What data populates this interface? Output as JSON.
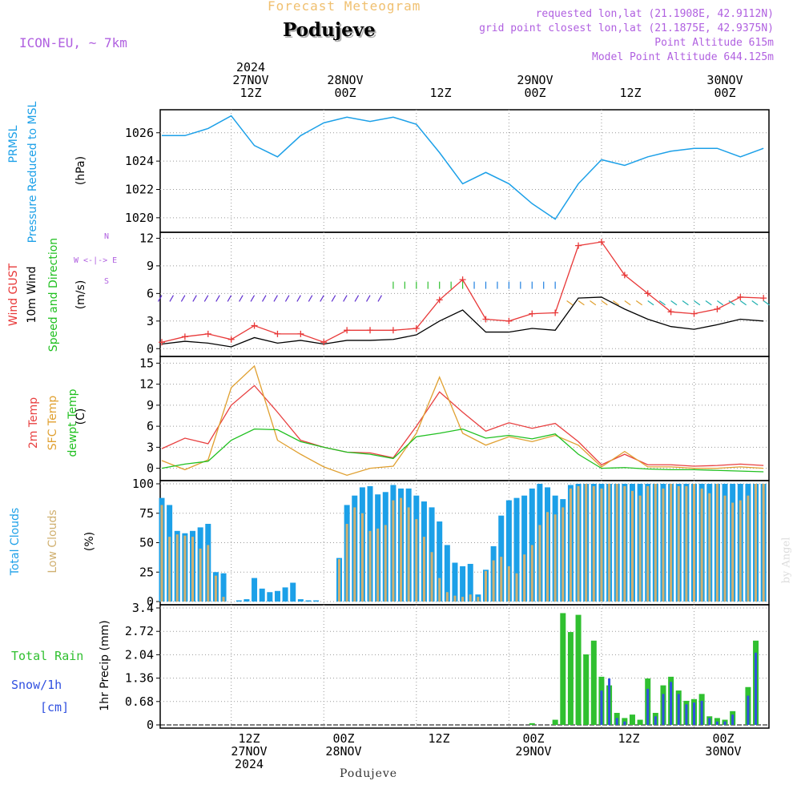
{
  "header": {
    "subtitle": "Forecast Meteogram",
    "location": "Podujeve",
    "model": "ICON-EU, ~ 7km",
    "requested": "requested lon,lat (21.1908E, 42.9112N)",
    "gridpoint": "grid point closest lon,lat (21.1875E, 42.9375N)",
    "point_altitude": "Point Altitude 615m",
    "model_altitude": "Model Point Altitude 644.125m"
  },
  "time_axis": {
    "top_ticks": [
      {
        "line1": "2024",
        "line2": "27NOV",
        "line3": "12Z"
      },
      {
        "line1": "",
        "line2": "28NOV",
        "line3": "00Z"
      },
      {
        "line1": "",
        "line2": "",
        "line3": "12Z"
      },
      {
        "line1": "",
        "line2": "29NOV",
        "line3": "00Z"
      },
      {
        "line1": "",
        "line2": "",
        "line3": "12Z"
      },
      {
        "line1": "",
        "line2": "30NOV",
        "line3": "00Z"
      }
    ],
    "bottom_ticks": [
      {
        "line1": "12Z",
        "line2": "27NOV",
        "line3": "2024"
      },
      {
        "line1": "00Z",
        "line2": "28NOV",
        "line3": ""
      },
      {
        "line1": "12Z",
        "line2": "",
        "line3": ""
      },
      {
        "line1": "00Z",
        "line2": "29NOV",
        "line3": ""
      },
      {
        "line1": "12Z",
        "line2": "",
        "line3": ""
      },
      {
        "line1": "00Z",
        "line2": "30NOV",
        "line3": ""
      }
    ]
  },
  "labels": {
    "prmsl": "PRMSL",
    "prmsl_long": "Pressure Reduced to MSL",
    "hpa": "(hPa)",
    "gust": "Wind GUST",
    "wind10": "10m Wind",
    "winddir": "Speed and Direction",
    "ms": "(m/s)",
    "compass_n": "N",
    "compass_s": "S",
    "compass_we": "W <-|-> E",
    "t2m": "2m Temp",
    "sfc": "SFC Temp",
    "dewpt": "dewpt Temp",
    "degc": "(C)",
    "total_clouds": "Total Clouds",
    "low_clouds": "Low Clouds",
    "pct": "(%)",
    "total_rain": "Total  Rain",
    "snow": "Snow/1h",
    "cm": "[cm]",
    "precip_axis": "1hr Precip (mm)",
    "watermark": "by Angel",
    "footer": "Podujeve"
  },
  "colors": {
    "pressure": "#1ca0e8",
    "gust": "#e83838",
    "wind": "#000000",
    "t2m": "#e84040",
    "sfc": "#e0a030",
    "dewpt": "#20c020",
    "total_clouds": "#1ca0e8",
    "low_clouds": "#d0b070",
    "rain": "#30c030",
    "snow": "#3050e0"
  },
  "chart_data": [
    {
      "type": "line",
      "title": "PRMSL",
      "ylabel": "(hPa)",
      "ylim": [
        1019.2,
        1027.4
      ],
      "yticks": [
        1020,
        1022,
        1024,
        1026
      ],
      "x_hours": [
        0,
        3,
        6,
        9,
        12,
        15,
        18,
        21,
        24,
        27,
        30,
        33,
        36,
        39,
        42,
        45,
        48,
        51,
        54,
        57,
        60,
        63,
        66,
        69,
        72,
        75,
        78
      ],
      "x_is_hours_from": "27NOV 03Z",
      "series": [
        {
          "values": [
            1025.8,
            1025.8,
            1026.3,
            1027.2,
            1025.1,
            1024.3,
            1025.8,
            1026.7,
            1027.1,
            1026.8,
            1027.1,
            1026.6,
            1024.6,
            1022.4,
            1023.2,
            1022.4,
            1021.0,
            1019.9,
            1022.4,
            1024.1,
            1023.7,
            1024.3,
            1024.7,
            1024.9,
            1024.9,
            1024.3,
            1024.9
          ]
        }
      ]
    },
    {
      "type": "line",
      "title": "Wind",
      "ylabel": "(m/s)",
      "ylim": [
        -0.5,
        12.3
      ],
      "yticks": [
        0,
        3,
        6,
        9,
        12
      ],
      "x_hours": [
        0,
        3,
        6,
        9,
        12,
        15,
        18,
        21,
        24,
        27,
        30,
        33,
        36,
        39,
        42,
        45,
        48,
        51,
        54,
        57,
        60,
        63,
        66,
        69,
        72,
        75,
        78
      ],
      "series": [
        {
          "values": [
            0.7,
            1.3,
            1.6,
            1.0,
            2.5,
            1.6,
            1.6,
            0.7,
            2.0,
            2.0,
            2.0,
            2.2,
            5.3,
            7.5,
            3.2,
            3.0,
            3.8,
            3.9,
            11.2,
            11.6,
            8.0,
            6.0,
            4.0,
            3.8,
            4.3,
            5.6,
            5.5
          ]
        },
        {
          "values": [
            0.5,
            0.8,
            0.6,
            0.2,
            1.2,
            0.6,
            0.9,
            0.5,
            0.9,
            0.9,
            1.0,
            1.5,
            3.0,
            4.2,
            1.8,
            1.8,
            2.2,
            2.0,
            5.5,
            5.6,
            4.3,
            3.2,
            2.4,
            2.1,
            2.6,
            3.2,
            3.0
          ]
        }
      ]
    },
    {
      "type": "line",
      "title": "Temperature",
      "ylabel": "(C)",
      "ylim": [
        -1.3,
        15.5
      ],
      "yticks": [
        0,
        3,
        6,
        9,
        12,
        15
      ],
      "x_hours": [
        0,
        3,
        6,
        9,
        12,
        15,
        18,
        21,
        24,
        27,
        30,
        33,
        36,
        39,
        42,
        45,
        48,
        51,
        54,
        57,
        60,
        63,
        66,
        69,
        72,
        75,
        78
      ],
      "series": [
        {
          "values": [
            2.8,
            4.3,
            3.5,
            9.0,
            11.8,
            8.0,
            4.0,
            3.0,
            2.3,
            2.2,
            1.5,
            6.0,
            10.9,
            8.0,
            5.3,
            6.5,
            5.7,
            6.4,
            3.8,
            0.5,
            2.0,
            0.5,
            0.5,
            0.3,
            0.4,
            0.6,
            0.4
          ]
        },
        {
          "values": [
            1.1,
            -0.2,
            1.2,
            11.5,
            14.6,
            4.0,
            2.0,
            0.2,
            -1.0,
            0.0,
            0.3,
            5.0,
            13.0,
            5.0,
            3.3,
            4.5,
            3.8,
            4.7,
            3.3,
            0.2,
            2.4,
            0.2,
            0.2,
            0.0,
            0.0,
            0.2,
            0.0
          ]
        },
        {
          "values": [
            0.0,
            0.6,
            1.0,
            4.0,
            5.6,
            5.5,
            3.8,
            3.0,
            2.3,
            2.0,
            1.4,
            4.5,
            5.0,
            5.6,
            4.3,
            4.7,
            4.2,
            4.9,
            2.0,
            0.0,
            0.1,
            -0.1,
            -0.2,
            -0.2,
            -0.3,
            -0.4,
            -0.5
          ]
        }
      ]
    },
    {
      "type": "bar",
      "title": "Clouds",
      "ylabel": "(%)",
      "ylim": [
        0,
        100
      ],
      "yticks": [
        0,
        25,
        50,
        75,
        100
      ],
      "x_hours": [
        0,
        1,
        2,
        3,
        4,
        5,
        6,
        7,
        8,
        9,
        10,
        11,
        12,
        13,
        14,
        15,
        16,
        17,
        18,
        19,
        20,
        21,
        22,
        23,
        24,
        25,
        26,
        27,
        28,
        29,
        30,
        31,
        32,
        33,
        34,
        35,
        36,
        37,
        38,
        39,
        40,
        41,
        42,
        43,
        44,
        45,
        46,
        47,
        48,
        49,
        50,
        51,
        52,
        53,
        54,
        55,
        56,
        57,
        58,
        59,
        60,
        61,
        62,
        63,
        64,
        65,
        66,
        67,
        68,
        69,
        70,
        71,
        72,
        73,
        74,
        75,
        76,
        77,
        78
      ],
      "series": [
        {
          "name": "Total Clouds",
          "values": [
            88,
            82,
            60,
            58,
            60,
            63,
            66,
            25,
            24,
            0,
            1,
            2,
            20,
            11,
            8,
            9,
            12,
            16,
            2,
            1,
            1,
            0,
            0,
            37,
            82,
            90,
            97,
            98,
            91,
            93,
            99,
            96,
            96,
            90,
            85,
            80,
            68,
            48,
            33,
            30,
            32,
            6,
            27,
            47,
            73,
            86,
            88,
            90,
            96,
            100,
            97,
            90,
            87,
            99,
            100,
            100,
            100,
            100,
            100,
            100,
            100,
            100,
            100,
            100,
            100,
            100,
            100,
            100,
            100,
            100,
            100,
            100,
            100,
            100,
            100,
            100,
            100,
            100,
            100
          ]
        },
        {
          "name": "Low Clouds",
          "values": [
            82,
            55,
            57,
            56,
            55,
            45,
            48,
            22,
            4,
            0,
            0,
            0,
            0,
            0,
            0,
            0,
            0,
            0,
            0,
            0,
            0,
            0,
            0,
            36,
            66,
            80,
            75,
            60,
            62,
            65,
            86,
            88,
            80,
            70,
            55,
            42,
            20,
            8,
            5,
            4,
            6,
            4,
            26,
            35,
            38,
            30,
            24,
            40,
            48,
            65,
            76,
            74,
            80,
            96,
            98,
            100,
            98,
            96,
            100,
            100,
            98,
            94,
            90,
            98,
            100,
            96,
            100,
            98,
            98,
            100,
            96,
            92,
            100,
            90,
            84,
            86,
            90,
            100,
            100
          ]
        }
      ]
    },
    {
      "type": "bar",
      "title": "1hr Precip",
      "ylabel": "1hr Precip (mm)",
      "ylim": [
        0,
        3.4
      ],
      "yticks": [
        0,
        0.68,
        1.36,
        2.04,
        2.72,
        3.4
      ],
      "x_hours": [
        48,
        49,
        50,
        51,
        52,
        53,
        54,
        55,
        56,
        57,
        58,
        59,
        60,
        61,
        62,
        63,
        64,
        65,
        66,
        67,
        68,
        69,
        70,
        71,
        72,
        73,
        74,
        75,
        76,
        77,
        78
      ],
      "series": [
        {
          "name": "Total Rain",
          "values": [
            0.05,
            0,
            0,
            0.15,
            3.25,
            2.7,
            3.2,
            2.05,
            2.45,
            1.4,
            1.15,
            0.35,
            0.2,
            0.3,
            0.15,
            1.35,
            0.35,
            1.15,
            1.4,
            1.0,
            0.7,
            0.75,
            0.9,
            0.25,
            0.2,
            0.15,
            0.4,
            0.0,
            1.1,
            2.45,
            0.0
          ]
        },
        {
          "name": "Snow",
          "values": [
            0,
            0,
            0,
            0,
            0,
            0,
            0,
            0,
            0,
            1.0,
            1.35,
            0.2,
            0.1,
            0,
            0,
            1.05,
            0.25,
            0.9,
            1.25,
            0.9,
            0.6,
            0.65,
            0.7,
            0.2,
            0.1,
            0.1,
            0.3,
            0,
            0.85,
            2.1,
            0
          ]
        }
      ]
    }
  ]
}
